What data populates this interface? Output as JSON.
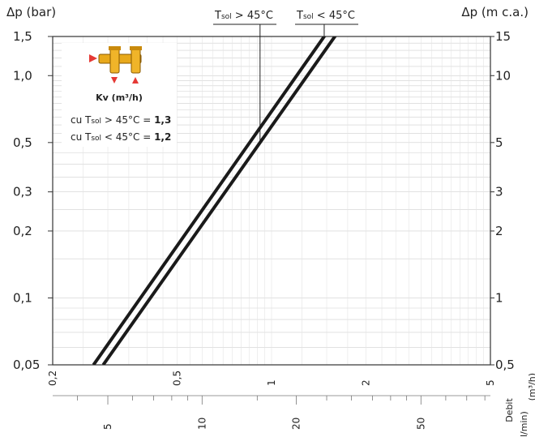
{
  "chart_data": {
    "type": "line",
    "title": "",
    "ylabel_left": "Δp (bar)",
    "ylabel_right": "Δp (m c.a.)",
    "xlabel": "Debit",
    "xunit_m3h": "(m³/h)",
    "xunit_lmin": "l/min)",
    "y_ticks_bar": [
      "1,5",
      "1,0",
      "0,5",
      "0,3",
      "0,2",
      "0,1",
      "0,05"
    ],
    "y_ticks_m": [
      "15",
      "10",
      "5",
      "3",
      "2",
      "1",
      "0,5"
    ],
    "x_ticks_m3h": [
      "0,2",
      "0,5",
      "1",
      "2",
      "5"
    ],
    "x_ticks_lmin": [
      "5",
      "10",
      "20",
      "50"
    ],
    "ylim_bar": [
      0.05,
      1.5
    ],
    "xlim_m3h": [
      0.2,
      5
    ],
    "log_scale": true,
    "grid": true,
    "legend": {
      "line1_prefix": "T",
      "line1_sub": "sol",
      "line1_suffix": " > 45°C",
      "line2_prefix": "T",
      "line2_sub": "sol",
      "line2_suffix": " < 45°C"
    },
    "kv_box": {
      "title": "Kv (m³/h)",
      "row1_prefix": "cu T",
      "row1_sub": "sol",
      "row1_mid": " > 45°C = ",
      "row1_value": "1,3",
      "row2_prefix": "cu T",
      "row2_sub": "sol",
      "row2_mid": " < 45°C = ",
      "row2_value": "1,2"
    },
    "series": [
      {
        "name": "Tsol > 45°C",
        "kv": 1.3,
        "x": [
          0.29,
          1.84
        ],
        "y": [
          0.05,
          2.0
        ]
      },
      {
        "name": "Tsol < 45°C",
        "kv": 1.2,
        "x": [
          0.27,
          1.7
        ],
        "y": [
          0.05,
          2.0
        ]
      }
    ],
    "colors": {
      "line": "#1a1a1a",
      "grid": "#cfcfcf",
      "grid_minor": "#e4e4e4",
      "arrow": "#e53935",
      "valve": "#e8a91b"
    }
  }
}
